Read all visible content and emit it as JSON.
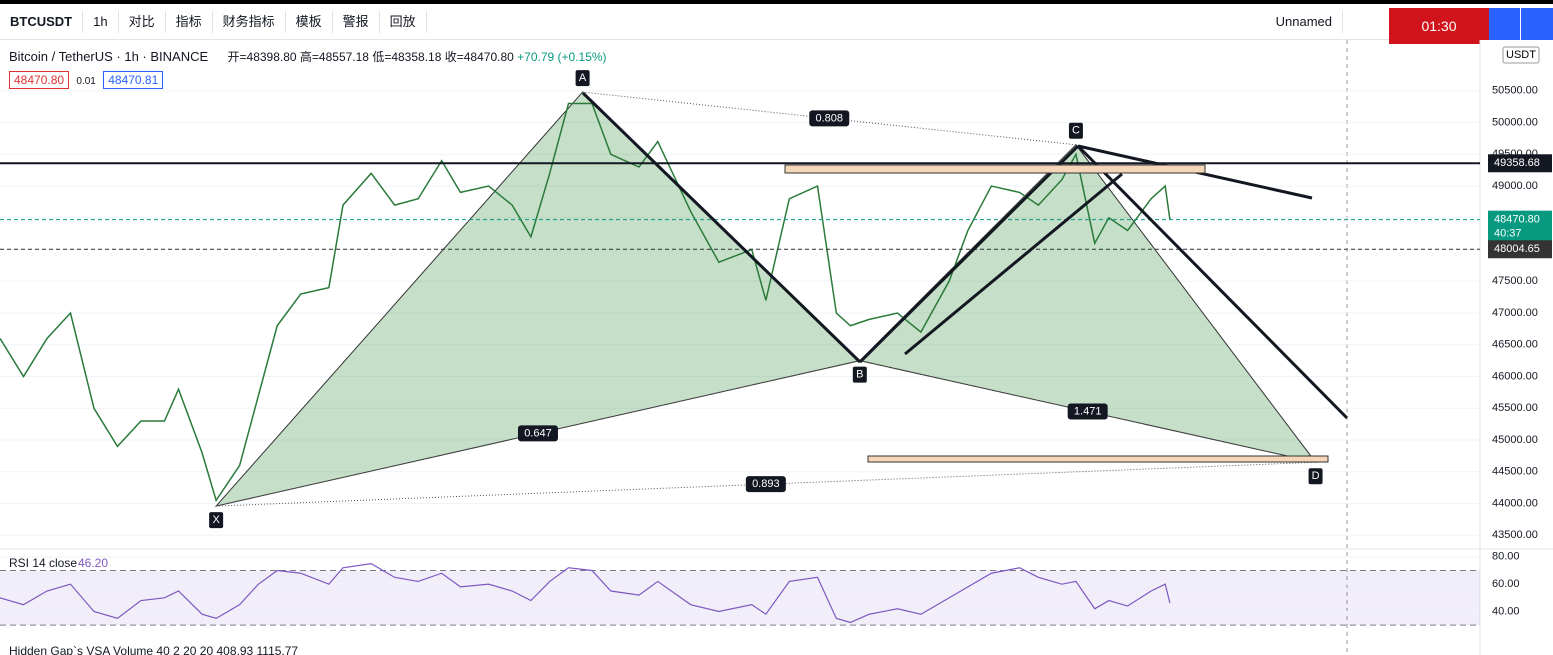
{
  "toolbar": {
    "symbol": "BTCUSDT",
    "interval": "1h",
    "compare": "对比",
    "indicators": "指标",
    "financials": "财务指标",
    "templates": "模板",
    "alerts": "警报",
    "replay": "回放",
    "layout_name": "Unnamed",
    "record_time": "01:30"
  },
  "legend": {
    "title": "Bitcoin / TetherUS · 1h · BINANCE",
    "open": "开=48398.80",
    "high": "高=48557.18",
    "low": "低=48358.18",
    "close": "收=48470.80",
    "change": "+70.79 (+0.15%)",
    "bid": "48470.80",
    "spread": "0.01",
    "ask": "48470.81"
  },
  "currency": "USDT",
  "chart_data": [
    {
      "type": "line",
      "name": "price",
      "color": "#2a7a3a",
      "x": [
        0,
        5,
        10,
        15,
        20,
        25,
        30,
        35,
        38,
        43,
        46,
        51,
        55,
        59,
        64,
        70,
        73,
        79,
        84,
        89,
        94,
        98,
        104,
        109,
        113,
        117,
        121,
        126,
        130,
        136,
        140,
        147,
        153,
        160,
        163,
        168,
        174,
        178,
        181,
        185,
        191,
        196,
        202,
        206,
        211,
        217,
        221,
        226,
        229,
        233,
        236,
        240,
        245,
        248,
        249
      ],
      "values": [
        46600,
        46000,
        46600,
        47000,
        45500,
        44900,
        45300,
        45300,
        45800,
        44800,
        44050,
        44600,
        45700,
        46800,
        47300,
        47400,
        48700,
        49200,
        48700,
        48800,
        49400,
        48900,
        49000,
        48700,
        48200,
        49200,
        50300,
        50300,
        49500,
        49300,
        49700,
        48600,
        47800,
        48000,
        47200,
        48800,
        49000,
        47000,
        46800,
        46900,
        47000,
        46700,
        47500,
        48300,
        49000,
        48900,
        48700,
        49100,
        49500,
        48100,
        48500,
        48300,
        48800,
        49000,
        48470.8
      ],
      "xlim": [
        0,
        315
      ],
      "ylim": [
        43300,
        51300
      ],
      "yticks": [
        {
          "value": 50500,
          "label": "50500.00"
        },
        {
          "value": 50000,
          "label": "50000.00"
        },
        {
          "value": 49500,
          "label": "49500.00"
        },
        {
          "value": 49000,
          "label": "49000.00"
        },
        {
          "value": 48500,
          "label": "48500.00"
        },
        {
          "value": 48000,
          "label": "48000.00"
        },
        {
          "value": 47500,
          "label": "47500.00"
        },
        {
          "value": 47000,
          "label": "47000.00"
        },
        {
          "value": 46500,
          "label": "46500.00"
        },
        {
          "value": 46000,
          "label": "46000.00"
        },
        {
          "value": 45500,
          "label": "45500.00"
        },
        {
          "value": 45000,
          "label": "45000.00"
        },
        {
          "value": 44500,
          "label": "44500.00"
        },
        {
          "value": 44000,
          "label": "44000.00"
        },
        {
          "value": 43500,
          "label": "43500.00"
        }
      ],
      "price_lines": [
        {
          "value": 49358.68,
          "label": "49358.68",
          "color": "#131722"
        },
        {
          "value": 48470.8,
          "label": "48470.80",
          "color": "#089981",
          "countdown": "40:37"
        },
        {
          "value": 48004.65,
          "label": "48004.65",
          "color": "#333"
        }
      ],
      "pattern": {
        "points": [
          {
            "label": "X",
            "x": 46,
            "value": 43960
          },
          {
            "label": "A",
            "x": 124,
            "value": 50480
          },
          {
            "label": "B",
            "x": 183,
            "value": 46250
          },
          {
            "label": "C",
            "x": 229,
            "value": 49650
          },
          {
            "label": "D",
            "x": 280,
            "value": 44650
          }
        ],
        "ratios": {
          "xb": 0.647,
          "ac": 0.808,
          "bd": 1.471,
          "xd": 0.893
        }
      }
    },
    {
      "type": "line",
      "name": "rsi",
      "title": "RSI 14 close",
      "last": "46.20",
      "color": "#7e57c2",
      "x": [
        0,
        5,
        10,
        15,
        20,
        25,
        30,
        35,
        38,
        43,
        46,
        51,
        55,
        59,
        64,
        70,
        73,
        79,
        84,
        89,
        94,
        98,
        104,
        109,
        113,
        117,
        121,
        126,
        130,
        136,
        140,
        147,
        153,
        160,
        163,
        168,
        174,
        178,
        181,
        185,
        191,
        196,
        202,
        206,
        211,
        217,
        221,
        226,
        229,
        233,
        236,
        240,
        245,
        248,
        249
      ],
      "values": [
        50,
        45,
        55,
        60,
        40,
        35,
        48,
        50,
        55,
        38,
        35,
        45,
        60,
        70,
        68,
        60,
        72,
        75,
        65,
        62,
        68,
        58,
        60,
        55,
        48,
        62,
        72,
        70,
        55,
        52,
        62,
        45,
        40,
        45,
        38,
        62,
        65,
        35,
        32,
        38,
        42,
        38,
        50,
        58,
        68,
        72,
        65,
        60,
        62,
        42,
        48,
        44,
        55,
        60,
        46.2
      ],
      "xlim": [
        0,
        315
      ],
      "ylim": [
        25,
        85
      ],
      "yticks": [
        {
          "value": 80,
          "label": "80.00"
        },
        {
          "value": 60,
          "label": "60.00"
        },
        {
          "value": 40,
          "label": "40.00"
        }
      ],
      "band": [
        30,
        70
      ]
    }
  ],
  "volume_legend": "Hidden Gap`s VSA Volume 40 2 20 20  408.93  1115.77"
}
